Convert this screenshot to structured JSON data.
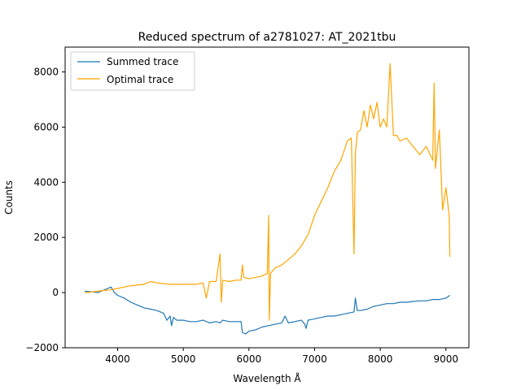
{
  "chart_data": {
    "type": "line",
    "title": "Reduced spectrum of a2781027: AT_2021tbu",
    "xlabel": "Wavelength Å",
    "ylabel": "Counts",
    "xlim": [
      3200,
      9350
    ],
    "ylim": [
      -2000,
      8900
    ],
    "xticks": [
      4000,
      5000,
      6000,
      7000,
      8000,
      9000
    ],
    "yticks": [
      -2000,
      0,
      2000,
      4000,
      6000,
      8000
    ],
    "grid": false,
    "legend_position": "top-left",
    "series": [
      {
        "name": "Summed trace",
        "color": "#1f77b4",
        "x": [
          3500,
          3600,
          3700,
          3800,
          3850,
          3900,
          3950,
          4000,
          4100,
          4200,
          4300,
          4400,
          4500,
          4600,
          4700,
          4750,
          4800,
          4820,
          4850,
          4900,
          5000,
          5100,
          5200,
          5300,
          5400,
          5500,
          5560,
          5600,
          5700,
          5800,
          5880,
          5900,
          5950,
          6000,
          6100,
          6200,
          6300,
          6400,
          6500,
          6550,
          6600,
          6700,
          6800,
          6850,
          6870,
          6900,
          7000,
          7100,
          7200,
          7300,
          7400,
          7500,
          7600,
          7620,
          7650,
          7700,
          7800,
          7900,
          8000,
          8100,
          8200,
          8300,
          8400,
          8500,
          8600,
          8700,
          8800,
          8900,
          9000,
          9060
        ],
        "y": [
          50,
          30,
          0,
          100,
          150,
          200,
          0,
          -100,
          -200,
          -350,
          -450,
          -550,
          -600,
          -650,
          -750,
          -1000,
          -850,
          -1200,
          -900,
          -1000,
          -1000,
          -1050,
          -1050,
          -1000,
          -1100,
          -1050,
          -1100,
          -1000,
          -1050,
          -1050,
          -1050,
          -1450,
          -1500,
          -1400,
          -1350,
          -1250,
          -1200,
          -1150,
          -1100,
          -850,
          -1100,
          -1050,
          -1000,
          -1150,
          -1300,
          -1000,
          -950,
          -900,
          -850,
          -850,
          -800,
          -750,
          -700,
          -200,
          -650,
          -650,
          -600,
          -500,
          -450,
          -400,
          -400,
          -350,
          -350,
          -320,
          -300,
          -300,
          -250,
          -250,
          -200,
          -100
        ]
      },
      {
        "name": "Optimal trace",
        "color": "#ffa500",
        "x": [
          3500,
          3600,
          3700,
          3800,
          3900,
          4000,
          4200,
          4400,
          4500,
          4600,
          4800,
          5000,
          5200,
          5300,
          5350,
          5400,
          5500,
          5560,
          5580,
          5600,
          5700,
          5800,
          5880,
          5900,
          5920,
          6000,
          6100,
          6200,
          6280,
          6300,
          6310,
          6330,
          6400,
          6500,
          6600,
          6700,
          6800,
          6900,
          7000,
          7100,
          7200,
          7300,
          7400,
          7500,
          7560,
          7600,
          7620,
          7650,
          7700,
          7750,
          7800,
          7850,
          7900,
          7950,
          8000,
          8050,
          8100,
          8150,
          8200,
          8250,
          8300,
          8400,
          8500,
          8600,
          8700,
          8800,
          8820,
          8840,
          8900,
          8950,
          9000,
          9050,
          9060
        ],
        "y": [
          0,
          20,
          50,
          80,
          100,
          150,
          250,
          300,
          400,
          350,
          300,
          300,
          300,
          350,
          -200,
          400,
          400,
          1400,
          -350,
          450,
          400,
          450,
          450,
          1000,
          550,
          500,
          550,
          600,
          700,
          2800,
          -1000,
          700,
          900,
          1000,
          1200,
          1400,
          1700,
          2100,
          2800,
          3300,
          3800,
          4400,
          4800,
          5500,
          5600,
          1400,
          5000,
          5800,
          5900,
          6600,
          6000,
          6800,
          6300,
          6900,
          6000,
          6300,
          6000,
          8300,
          5700,
          5700,
          5500,
          5600,
          5300,
          5000,
          5300,
          4800,
          7600,
          4500,
          5900,
          3000,
          3800,
          2800,
          1300
        ]
      }
    ]
  }
}
